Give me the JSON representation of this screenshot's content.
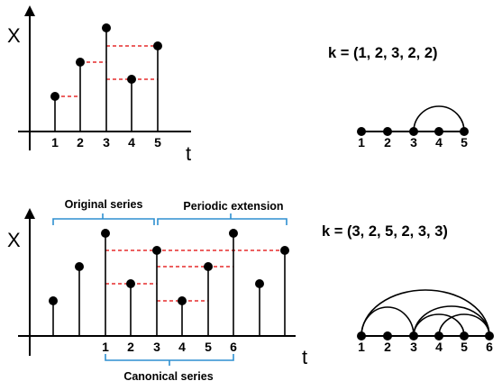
{
  "top": {
    "y_label": "X",
    "x_label": "t",
    "tick_labels": [
      "1",
      "2",
      "3",
      "4",
      "5"
    ],
    "k_text": "k = (1, 2, 3, 2, 2)",
    "graph_node_labels": [
      "1",
      "2",
      "3",
      "4",
      "5"
    ]
  },
  "bottom": {
    "y_label": "X",
    "x_label": "t",
    "tick_labels": [
      "1",
      "2",
      "3",
      "4",
      "5",
      "6"
    ],
    "brace_original": "Original series",
    "brace_periodic": "Periodic extension",
    "brace_canonical": "Canonical series",
    "k_text": "k = (3, 2, 5, 2, 3, 3)",
    "graph_node_labels": [
      "1",
      "2",
      "3",
      "4",
      "5",
      "6"
    ]
  },
  "colors": {
    "dashed_lines": "#e00000",
    "braces": "#2e8fd0",
    "marks": "#000000"
  }
}
